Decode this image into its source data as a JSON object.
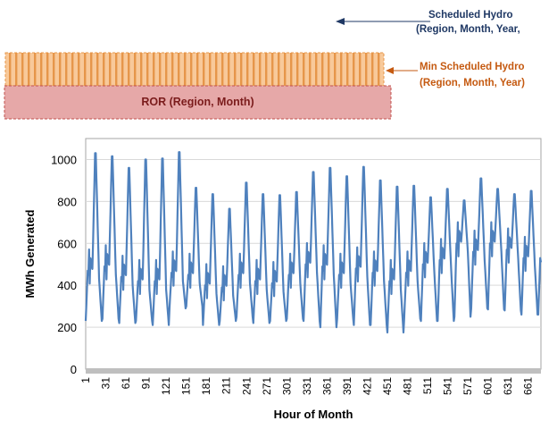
{
  "diagram": {
    "scheduled_label_1": "Scheduled Hydro",
    "scheduled_label_2": "(Region, Month, Year,",
    "min_label_1": "Min Scheduled Hydro",
    "min_label_2": "(Region, Month, Year)",
    "ror_label": "ROR (Region, Month)",
    "colors": {
      "scheduled_text": "#1f3864",
      "min_text": "#c55a11",
      "hatch_fill": "#f8c99a",
      "hatch_line": "#e6964a",
      "ror_fill": "#e6a8a8",
      "ror_border": "#c0504d",
      "ror_text": "#7b1c1c"
    }
  },
  "chart_data": {
    "type": "line",
    "xlabel": "Hour of Month",
    "ylabel": "MWh Generated",
    "ylim": [
      0,
      1100
    ],
    "yticks": [
      0,
      200,
      400,
      600,
      800,
      1000
    ],
    "xticks": [
      1,
      31,
      61,
      91,
      121,
      151,
      181,
      211,
      241,
      271,
      301,
      331,
      361,
      391,
      421,
      451,
      481,
      511,
      541,
      571,
      601,
      631,
      661
    ],
    "xlim": [
      1,
      680
    ],
    "grid": true,
    "legend": "none",
    "series_color": "#4f81bd",
    "daily_peaks": [
      1030,
      1015,
      960,
      1000,
      1005,
      1035,
      865,
      835,
      765,
      890,
      835,
      830,
      845,
      940,
      960,
      920,
      965,
      900,
      870,
      875,
      820,
      860,
      805,
      910,
      860,
      835,
      850
    ],
    "daily_troughs": [
      230,
      240,
      220,
      230,
      210,
      290,
      300,
      210,
      230,
      250,
      220,
      230,
      240,
      230,
      200,
      240,
      210,
      210,
      175,
      240,
      230,
      230,
      250,
      290,
      285,
      280,
      260
    ],
    "daily_base": [
      470,
      490,
      440,
      420,
      420,
      460,
      450,
      400,
      390,
      450,
      420,
      410,
      450,
      500,
      490,
      450,
      480,
      460,
      420,
      460,
      500,
      520,
      600,
      560,
      600,
      570,
      530
    ]
  }
}
